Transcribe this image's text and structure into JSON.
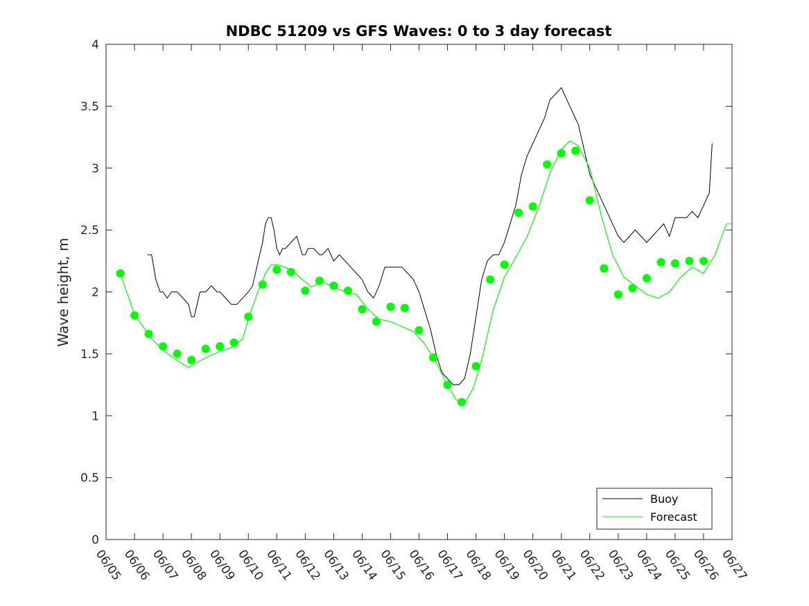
{
  "chart_data": {
    "type": "line",
    "title": "NDBC 51209 vs GFS Waves: 0 to 3 day forecast",
    "xlabel": "",
    "ylabel": "Wave height, m",
    "x_tick_labels": [
      "06/05",
      "06/06",
      "06/07",
      "06/08",
      "06/09",
      "06/10",
      "06/11",
      "06/12",
      "06/13",
      "06/14",
      "06/15",
      "06/16",
      "06/17",
      "06/18",
      "06/19",
      "06/20",
      "06/21",
      "06/22",
      "06/23",
      "06/24",
      "06/25",
      "06/26",
      "06/27"
    ],
    "y_ticks": [
      0,
      0.5,
      1,
      1.5,
      2,
      2.5,
      3,
      3.5,
      4
    ],
    "xlim": [
      "06/05",
      "06/27"
    ],
    "ylim": [
      0,
      4
    ],
    "grid": false,
    "legend_position": "bottom-right",
    "colors": {
      "buoy": "#000000",
      "forecast": "#00ff00"
    },
    "series": [
      {
        "name": "Buoy",
        "x_unit": "day of June",
        "x": [
          6.45,
          6.6,
          6.75,
          6.9,
          7.0,
          7.15,
          7.3,
          7.5,
          7.7,
          7.9,
          8.0,
          8.1,
          8.3,
          8.5,
          8.7,
          8.9,
          9.0,
          9.2,
          9.4,
          9.6,
          9.8,
          10.0,
          10.15,
          10.3,
          10.4,
          10.5,
          10.6,
          10.7,
          10.8,
          10.9,
          11.0,
          11.1,
          11.2,
          11.3,
          11.5,
          11.7,
          11.9,
          12.0,
          12.1,
          12.3,
          12.5,
          12.6,
          12.8,
          13.0,
          13.2,
          13.4,
          13.6,
          13.8,
          14.0,
          14.2,
          14.4,
          14.6,
          14.8,
          15.0,
          15.2,
          15.4,
          15.6,
          15.8,
          16.0,
          16.2,
          16.4,
          16.6,
          16.8,
          17.0,
          17.2,
          17.4,
          17.6,
          17.8,
          18.0,
          18.2,
          18.4,
          18.6,
          18.8,
          19.0,
          19.2,
          19.4,
          19.6,
          19.8,
          20.0,
          20.2,
          20.4,
          20.6,
          20.8,
          21.0,
          21.2,
          21.4,
          21.6,
          21.8,
          22.0,
          22.2,
          22.4,
          22.6,
          22.8,
          23.0,
          23.2,
          23.4,
          23.6,
          23.8,
          24.0,
          24.2,
          24.4,
          24.6,
          24.8,
          25.0,
          25.2,
          25.4,
          25.6,
          25.8,
          26.0,
          26.2,
          26.3
        ],
        "y": [
          2.3,
          2.3,
          2.1,
          2.0,
          2.0,
          1.95,
          2.0,
          2.0,
          1.95,
          1.9,
          1.8,
          1.8,
          2.0,
          2.0,
          2.05,
          2.0,
          2.0,
          1.95,
          1.9,
          1.9,
          1.95,
          2.0,
          2.05,
          2.2,
          2.3,
          2.4,
          2.55,
          2.6,
          2.6,
          2.5,
          2.35,
          2.3,
          2.35,
          2.35,
          2.4,
          2.45,
          2.3,
          2.3,
          2.35,
          2.35,
          2.3,
          2.3,
          2.35,
          2.25,
          2.3,
          2.25,
          2.2,
          2.15,
          2.1,
          2.0,
          1.95,
          2.05,
          2.2,
          2.2,
          2.2,
          2.2,
          2.15,
          2.1,
          2.0,
          1.85,
          1.7,
          1.5,
          1.35,
          1.3,
          1.25,
          1.25,
          1.3,
          1.5,
          1.8,
          2.1,
          2.25,
          2.3,
          2.3,
          2.4,
          2.55,
          2.7,
          2.95,
          3.1,
          3.2,
          3.3,
          3.4,
          3.55,
          3.6,
          3.65,
          3.55,
          3.45,
          3.35,
          3.15,
          2.95,
          2.85,
          2.75,
          2.65,
          2.55,
          2.45,
          2.4,
          2.45,
          2.5,
          2.45,
          2.4,
          2.45,
          2.5,
          2.55,
          2.45,
          2.6,
          2.6,
          2.6,
          2.65,
          2.6,
          2.7,
          2.8,
          3.2
        ]
      },
      {
        "name": "Forecast",
        "x_unit": "day of June",
        "x": [
          5.5,
          5.8,
          6.0,
          6.3,
          6.6,
          7.0,
          7.4,
          7.9,
          8.2,
          8.6,
          9.0,
          9.4,
          9.8,
          10.0,
          10.3,
          10.6,
          10.8,
          11.0,
          11.3,
          11.6,
          11.9,
          12.2,
          12.6,
          13.0,
          13.4,
          13.8,
          14.2,
          14.6,
          15.0,
          15.4,
          15.8,
          16.2,
          16.6,
          17.0,
          17.3,
          17.6,
          17.9,
          18.2,
          18.6,
          19.0,
          19.4,
          19.8,
          20.2,
          20.6,
          21.0,
          21.3,
          21.6,
          22.0,
          22.4,
          22.8,
          23.2,
          23.6,
          24.0,
          24.4,
          24.8,
          25.2,
          25.6,
          26.0,
          26.4,
          26.8,
          27.0
        ],
        "y": [
          2.15,
          1.95,
          1.82,
          1.72,
          1.62,
          1.53,
          1.46,
          1.39,
          1.43,
          1.48,
          1.52,
          1.55,
          1.62,
          1.78,
          1.98,
          2.15,
          2.22,
          2.22,
          2.2,
          2.16,
          2.1,
          2.04,
          2.08,
          2.04,
          2.0,
          1.98,
          1.86,
          1.78,
          1.76,
          1.72,
          1.68,
          1.58,
          1.43,
          1.25,
          1.13,
          1.1,
          1.22,
          1.45,
          1.85,
          2.12,
          2.28,
          2.45,
          2.68,
          2.96,
          3.15,
          3.22,
          3.18,
          3.0,
          2.62,
          2.3,
          2.12,
          2.05,
          1.98,
          1.95,
          2.0,
          2.12,
          2.2,
          2.15,
          2.3,
          2.55,
          2.55
        ]
      },
      {
        "name": "",
        "x": [
          5.5,
          6.0,
          6.5,
          7.0,
          7.5,
          8.0,
          8.5,
          9.0,
          9.5,
          10.0,
          10.5,
          11.0,
          11.5,
          12.0,
          12.5,
          13.0,
          13.5,
          14.0,
          14.5,
          15.0,
          15.5,
          16.0,
          16.5,
          17.0,
          17.5,
          18.0,
          18.5,
          19.0,
          19.5,
          20.0,
          20.5,
          21.0,
          21.5,
          22.0,
          22.5,
          23.0,
          23.5,
          24.0,
          24.5,
          25.0,
          25.5,
          26.0
        ],
        "y": [
          2.15,
          1.81,
          1.66,
          1.56,
          1.5,
          1.45,
          1.54,
          1.56,
          1.59,
          1.8,
          2.06,
          2.18,
          2.16,
          2.01,
          2.09,
          2.05,
          2.01,
          1.86,
          1.76,
          1.88,
          1.87,
          1.69,
          1.47,
          1.25,
          1.11,
          1.4,
          2.1,
          2.22,
          2.64,
          2.69,
          3.03,
          3.12,
          3.14,
          2.74,
          2.19,
          1.98,
          2.03,
          2.11,
          2.24,
          2.23,
          2.25,
          2.25
        ]
      }
    ],
    "legend": [
      {
        "label": "Buoy",
        "color": "#000000"
      },
      {
        "label": "Forecast",
        "color": "#00ff00"
      }
    ]
  }
}
